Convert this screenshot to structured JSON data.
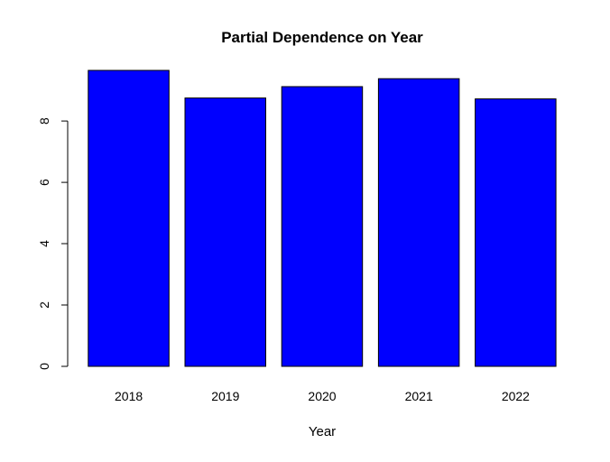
{
  "chart_data": {
    "type": "bar",
    "title": "Partial Dependence on Year",
    "xlabel": "Year",
    "ylabel": "",
    "categories": [
      "2018",
      "2019",
      "2020",
      "2021",
      "2022"
    ],
    "values": [
      9.65,
      8.75,
      9.12,
      9.38,
      8.72
    ],
    "ylim": [
      0,
      9.65
    ],
    "yticks": [
      0,
      2,
      4,
      6,
      8
    ],
    "bar_color": "#0000FF",
    "bar_border_color": "#000000",
    "grid": false,
    "legend": false
  }
}
